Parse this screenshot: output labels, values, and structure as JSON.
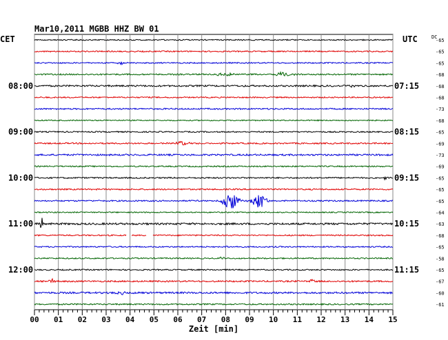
{
  "header": {
    "title": "Mar10,2011   MGBB HHZ BW 01",
    "left_zone": "CET",
    "right_zone": "UTC",
    "dc_label": "DC"
  },
  "chart_data": {
    "type": "line",
    "title": "Mar10,2011   MGBB HHZ BW 01",
    "xlabel": "Zeit [min]",
    "ylabel": "",
    "xlim": [
      0,
      15
    ],
    "x_ticks": [
      "00",
      "01",
      "02",
      "03",
      "04",
      "05",
      "06",
      "07",
      "08",
      "09",
      "10",
      "11",
      "12",
      "13",
      "14",
      "15"
    ],
    "grid": true,
    "trace_colors": [
      "#000000",
      "#e00000",
      "#0000d8",
      "#006400"
    ],
    "left_time_labels": [
      {
        "row": 4,
        "label": "08:00"
      },
      {
        "row": 8,
        "label": "09:00"
      },
      {
        "row": 12,
        "label": "10:00"
      },
      {
        "row": 16,
        "label": "11:00"
      },
      {
        "row": 20,
        "label": "12:00"
      }
    ],
    "right_time_labels": [
      {
        "row": 4,
        "label": "07:15"
      },
      {
        "row": 8,
        "label": "08:15"
      },
      {
        "row": 12,
        "label": "09:15"
      },
      {
        "row": 16,
        "label": "10:15"
      },
      {
        "row": 20,
        "label": "11:15"
      }
    ],
    "dc_values": [
      -65,
      -65,
      -65,
      -68,
      -68,
      -68,
      -73,
      -68,
      -65,
      -69,
      -73,
      -69,
      -65,
      -65,
      -65,
      -64,
      -63,
      -68,
      -65,
      -58,
      -65,
      -67,
      -60,
      -61
    ],
    "noise_levels": [
      0.8,
      0.9,
      0.9,
      1.0,
      1.2,
      0.9,
      1.0,
      0.8,
      0.9,
      1.0,
      1.2,
      0.9,
      1.0,
      1.0,
      1.0,
      0.8,
      1.4,
      0.9,
      0.9,
      0.9,
      0.9,
      1.1,
      1.3,
      1.0
    ],
    "events": [
      {
        "row": 2,
        "t": 3.7,
        "amp": 2.0,
        "width": 0.25
      },
      {
        "row": 3,
        "t": 10.4,
        "amp": 3.5,
        "width": 0.5
      },
      {
        "row": 3,
        "t": 8.0,
        "amp": 2.0,
        "width": 0.6
      },
      {
        "row": 4,
        "t": 13.3,
        "amp": 2.0,
        "width": 0.2
      },
      {
        "row": 9,
        "t": 6.2,
        "amp": 3.0,
        "width": 0.35
      },
      {
        "row": 12,
        "t": 14.7,
        "amp": 2.5,
        "width": 0.15
      },
      {
        "row": 14,
        "t": 8.2,
        "amp": 13.0,
        "width": 0.45
      },
      {
        "row": 14,
        "t": 9.4,
        "amp": 10.0,
        "width": 0.4
      },
      {
        "row": 16,
        "t": 0.3,
        "amp": 14.0,
        "width": 0.08
      },
      {
        "row": 18,
        "t": 8.1,
        "amp": 2.5,
        "width": 0.2
      },
      {
        "row": 19,
        "t": 7.8,
        "amp": 2.0,
        "width": 0.2
      },
      {
        "row": 21,
        "t": 0.7,
        "amp": 3.0,
        "width": 0.25
      },
      {
        "row": 21,
        "t": 11.6,
        "amp": 2.5,
        "width": 0.2
      },
      {
        "row": 22,
        "t": 3.6,
        "amp": 2.5,
        "width": 0.3
      }
    ],
    "gaps": [
      {
        "row": 17,
        "from": 3.85,
        "to": 4.05
      },
      {
        "row": 17,
        "from": 4.7,
        "to": 4.95
      }
    ]
  }
}
